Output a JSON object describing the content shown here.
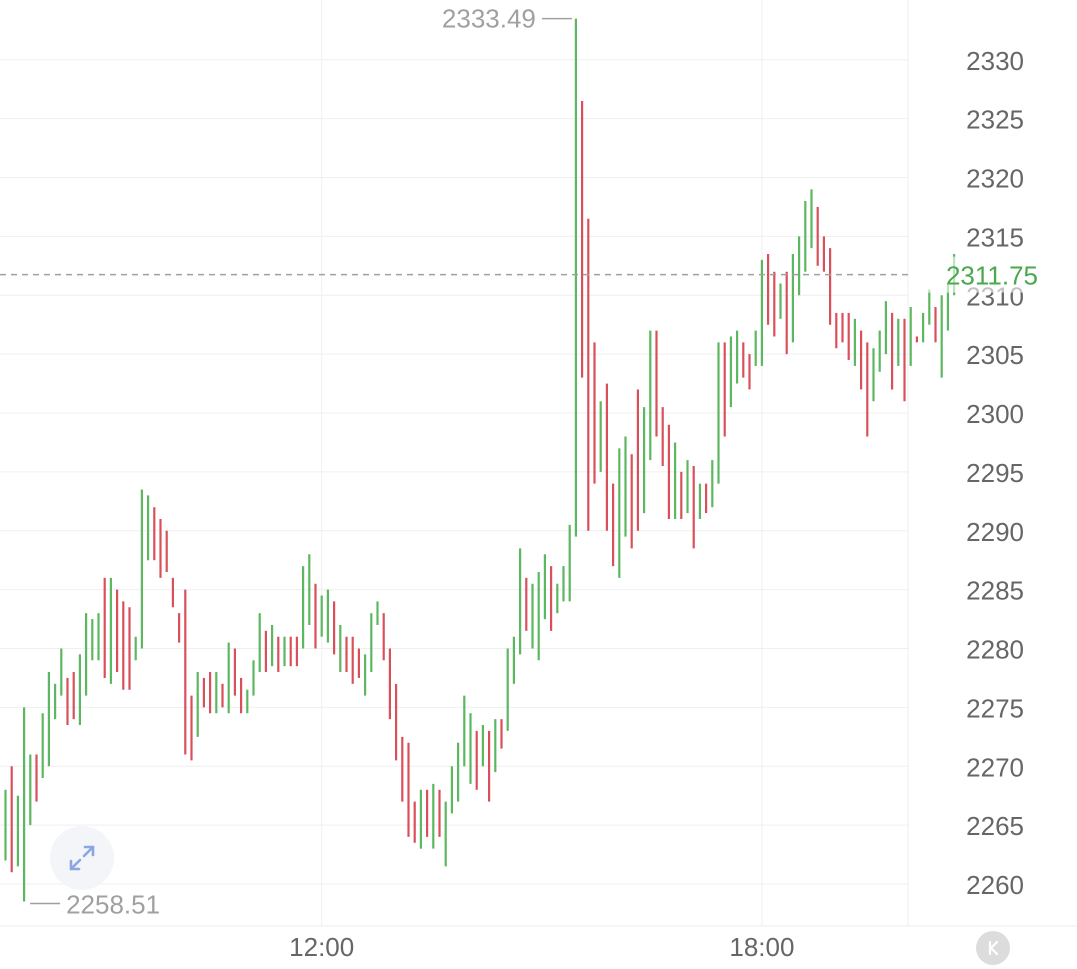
{
  "chart_data": {
    "type": "ohlc",
    "xlabel": "",
    "ylabel": "",
    "ylim": [
      2256.5,
      2335.5
    ],
    "y_ticks": [
      2260,
      2265,
      2270,
      2275,
      2280,
      2285,
      2290,
      2295,
      2300,
      2305,
      2310,
      2315,
      2320,
      2325,
      2330
    ],
    "y_tick_labels": [
      "2260",
      "2265",
      "2270",
      "2275",
      "2280",
      "2285",
      "2290",
      "2295",
      "2300",
      "2305",
      "2310",
      "2315",
      "2320",
      "2325",
      "2330"
    ],
    "x_ticks": [
      {
        "index": 51,
        "label": "12:00"
      },
      {
        "index": 122,
        "label": "18:00"
      }
    ],
    "last_price": 2311.75,
    "last_price_label": "2311.75",
    "max_label": "2333.49",
    "min_label": "2258.51",
    "grid": true,
    "colors": {
      "up": "#5cb860",
      "down": "#d9505b",
      "grid": "#efefef",
      "axis_text": "#666666",
      "last_price": "#4aa84e",
      "extreme_label": "#a0a0a0"
    },
    "bars": [
      [
        2268,
        2262,
        2266.5
      ],
      [
        2270,
        2261,
        2265
      ],
      [
        2267.5,
        2261.5,
        2265.5
      ],
      [
        2275,
        2258.51,
        2268
      ],
      [
        2271,
        2265,
        2269.5
      ],
      [
        2271,
        2267,
        2268
      ],
      [
        2274.5,
        2269,
        2273.5
      ],
      [
        2278,
        2270,
        2274
      ],
      [
        2277,
        2274,
        2275.5
      ],
      [
        2280,
        2276,
        2277
      ],
      [
        2277.5,
        2273.5,
        2276.5
      ],
      [
        2278,
        2274,
        2275.5
      ],
      [
        2279.5,
        2273.5,
        2277
      ],
      [
        2283,
        2276,
        2278
      ],
      [
        2282.5,
        2279,
        2280
      ],
      [
        2283,
        2279,
        2281
      ],
      [
        2286,
        2277.5,
        2280
      ],
      [
        2286,
        2277,
        2283
      ],
      [
        2285,
        2278,
        2280.5
      ],
      [
        2284,
        2276.5,
        2279
      ],
      [
        2283.5,
        2276.5,
        2278
      ],
      [
        2281,
        2279,
        2280.5
      ],
      [
        2293.5,
        2280,
        2292
      ],
      [
        2293,
        2287.5,
        2292.5
      ],
      [
        2292,
        2287.5,
        2290
      ],
      [
        2291,
        2286,
        2289
      ],
      [
        2290,
        2286.5,
        2288
      ],
      [
        2286,
        2283.5,
        2284
      ],
      [
        2283,
        2280.5,
        2281
      ],
      [
        2285,
        2271,
        2275
      ],
      [
        2276,
        2270.5,
        2274.5
      ],
      [
        2278,
        2272.5,
        2276.5
      ],
      [
        2277.5,
        2275,
        2276
      ],
      [
        2278,
        2274.5,
        2275
      ],
      [
        2278,
        2274.5,
        2277
      ],
      [
        2277,
        2275,
        2276
      ],
      [
        2280.5,
        2274.5,
        2279
      ],
      [
        2280,
        2276,
        2277.5
      ],
      [
        2277.5,
        2274.5,
        2275.5
      ],
      [
        2276.5,
        2274.5,
        2276
      ],
      [
        2279,
        2276,
        2277
      ],
      [
        2283,
        2278,
        2281.5
      ],
      [
        2281.5,
        2278,
        2280
      ],
      [
        2282,
        2278.5,
        2281
      ],
      [
        2281,
        2278,
        2279
      ],
      [
        2281,
        2278.5,
        2280.5
      ],
      [
        2281,
        2278.5,
        2280
      ],
      [
        2281,
        2278.5,
        2279.5
      ],
      [
        2287,
        2280,
        2283
      ],
      [
        2288,
        2282,
        2285.5
      ],
      [
        2285.5,
        2280,
        2282
      ],
      [
        2284.5,
        2281,
        2282.5
      ],
      [
        2285,
        2280.5,
        2283.5
      ],
      [
        2284,
        2279.5,
        2281
      ],
      [
        2282,
        2278,
        2281
      ],
      [
        2281,
        2278,
        2279.5
      ],
      [
        2281,
        2277,
        2279
      ],
      [
        2280,
        2277.5,
        2278.5
      ],
      [
        2279.5,
        2276,
        2278.5
      ],
      [
        2283,
        2278,
        2281.5
      ],
      [
        2284,
        2282,
        2283
      ],
      [
        2283,
        2279,
        2282
      ],
      [
        2280,
        2274,
        2275
      ],
      [
        2277,
        2270.5,
        2272
      ],
      [
        2272.5,
        2267,
        2270
      ],
      [
        2272,
        2264,
        2266
      ],
      [
        2267,
        2263.5,
        2264
      ],
      [
        2268,
        2263,
        2266
      ],
      [
        2268,
        2264,
        2265
      ],
      [
        2268.5,
        2263,
        2266.5
      ],
      [
        2268,
        2264,
        2265
      ],
      [
        2267,
        2261.5,
        2266
      ],
      [
        2270,
        2266,
        2268
      ],
      [
        2272,
        2267,
        2269
      ],
      [
        2276,
        2270,
        2272
      ],
      [
        2274.5,
        2268.5,
        2272.5
      ],
      [
        2273,
        2268,
        2270.5
      ],
      [
        2273.5,
        2270,
        2271
      ],
      [
        2273,
        2267,
        2270.5
      ],
      [
        2274,
        2269.5,
        2273
      ],
      [
        2274,
        2271.5,
        2272.5
      ],
      [
        2280,
        2273,
        2279
      ],
      [
        2281,
        2277,
        2280
      ],
      [
        2288.5,
        2279.5,
        2285.5
      ],
      [
        2286,
        2281.5,
        2283
      ],
      [
        2285.5,
        2280,
        2283.5
      ],
      [
        2286.5,
        2279,
        2284.5
      ],
      [
        2288,
        2282.5,
        2287
      ],
      [
        2287,
        2281.5,
        2282
      ],
      [
        2285.5,
        2283,
        2284
      ],
      [
        2287,
        2284,
        2285
      ],
      [
        2290.5,
        2284,
        2290
      ],
      [
        2333.49,
        2289.5,
        2330.5
      ],
      [
        2326.5,
        2303,
        2305
      ],
      [
        2316.5,
        2290,
        2301
      ],
      [
        2306,
        2294,
        2296
      ],
      [
        2301,
        2295,
        2297
      ],
      [
        2302.5,
        2290,
        2295
      ],
      [
        2294,
        2287,
        2289.5
      ],
      [
        2297,
        2286,
        2292
      ],
      [
        2298,
        2289.5,
        2297
      ],
      [
        2296.5,
        2288.5,
        2294
      ],
      [
        2302,
        2290,
        2293
      ],
      [
        2300.5,
        2291.5,
        2297
      ],
      [
        2307,
        2296,
        2305
      ],
      [
        2307,
        2298,
        2300
      ],
      [
        2300.5,
        2295.5,
        2297
      ],
      [
        2299,
        2291,
        2293
      ],
      [
        2297.5,
        2291,
        2295
      ],
      [
        2295,
        2291,
        2292.5
      ],
      [
        2296,
        2291.5,
        2294.5
      ],
      [
        2295.5,
        2288.5,
        2293
      ],
      [
        2294,
        2291,
        2293.5
      ],
      [
        2294,
        2291.5,
        2293
      ],
      [
        2296,
        2292,
        2294
      ],
      [
        2306,
        2294,
        2304.5
      ],
      [
        2306,
        2298,
        2303
      ],
      [
        2306.5,
        2300.5,
        2305
      ],
      [
        2307,
        2302.5,
        2305
      ],
      [
        2306,
        2303,
        2304.5
      ],
      [
        2305,
        2302,
        2303.5
      ],
      [
        2307,
        2304,
        2305.5
      ],
      [
        2313,
        2304,
        2312
      ],
      [
        2313.5,
        2307.5,
        2310
      ],
      [
        2312,
        2306.5,
        2307.5
      ],
      [
        2311,
        2308,
        2309.5
      ],
      [
        2312,
        2305,
        2308
      ],
      [
        2313.5,
        2306,
        2312
      ],
      [
        2315,
        2310,
        2313
      ],
      [
        2318,
        2312,
        2317
      ],
      [
        2319,
        2314,
        2317
      ],
      [
        2317.5,
        2312.5,
        2315.5
      ],
      [
        2315,
        2312,
        2313.5
      ],
      [
        2314,
        2307.5,
        2308
      ],
      [
        2308.5,
        2305.5,
        2307.5
      ],
      [
        2308.5,
        2306,
        2306.5
      ],
      [
        2308.5,
        2304.5,
        2306
      ],
      [
        2308,
        2304,
        2306
      ],
      [
        2307,
        2302,
        2305
      ],
      [
        2306,
        2298,
        2302.5
      ],
      [
        2305.5,
        2301,
        2303.5
      ],
      [
        2307,
        2303.5,
        2305.5
      ],
      [
        2309.5,
        2305,
        2307.5
      ],
      [
        2308.5,
        2302,
        2305
      ],
      [
        2308,
        2304,
        2305.5
      ],
      [
        2308,
        2301,
        2304
      ],
      [
        2309,
        2304,
        2307
      ],
      [
        2306.5,
        2306,
        2306.25
      ],
      [
        2308.5,
        2306,
        2308
      ],
      [
        2310.5,
        2307.5,
        2308.5
      ],
      [
        2309,
        2306,
        2306.5
      ],
      [
        2310,
        2303,
        2306.5
      ],
      [
        2311,
        2307,
        2310
      ],
      [
        2313.5,
        2310,
        2311.75
      ]
    ]
  },
  "ui": {
    "expand_icon": "expand-arrows-icon",
    "k_button_icon": "k-line-toggle-icon",
    "k_button_label": "K"
  }
}
